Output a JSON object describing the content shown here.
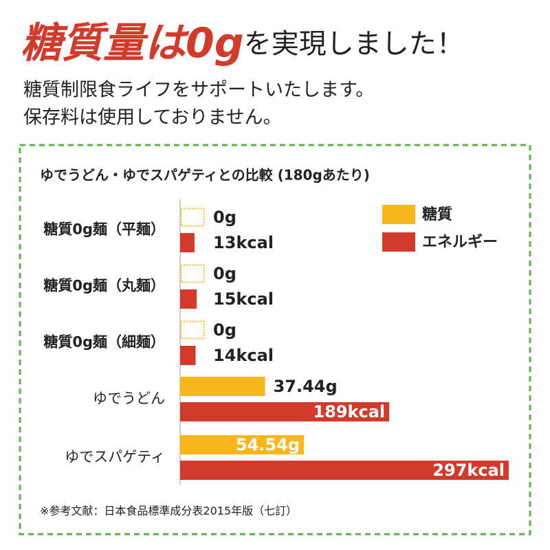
{
  "header": {
    "headline_emphasis": "糖質量は0g",
    "headline_rest": "を実現しました！",
    "lines": [
      "糖質制限食ライフをサポートいたします。",
      "保存料は使用しておりません。"
    ]
  },
  "chart_data": {
    "type": "bar",
    "orientation": "horizontal",
    "title": "ゆでうどん・ゆでスパゲティとの比較 (180gあたり)",
    "categories": [
      "糖質0g麺（平麺）",
      "糖質0g麺（丸麺）",
      "糖質0g麺（細麺）",
      "ゆでうどん",
      "ゆでスパゲティ"
    ],
    "series": [
      {
        "name": "糖質",
        "color": "#f5b71b",
        "values": [
          0,
          0,
          0,
          37.44,
          54.54
        ],
        "value_labels": [
          "0g",
          "0g",
          "0g",
          "37.44g",
          "54.54g"
        ]
      },
      {
        "name": "エネルギー",
        "color": "#d23a2c",
        "values": [
          13,
          15,
          14,
          189,
          297
        ],
        "value_labels": [
          "13kcal",
          "15kcal",
          "14kcal",
          "189kcal",
          "297kcal"
        ]
      }
    ],
    "legend": "upper right"
  },
  "footnote": "※参考文献：日本食品標準成分表2015年版（七訂）"
}
